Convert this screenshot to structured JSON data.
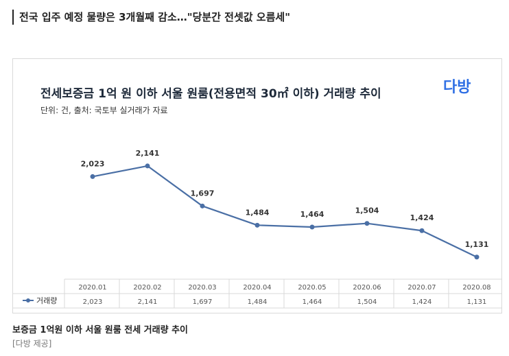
{
  "headline": "전국 입주 예정 물량은 3개월째 감소…\"당분간 전셋값 오름세\"",
  "caption": "보증금 1억원 이하 서울 원룸 전세 거래량 추이",
  "credit": "[다방 제공]",
  "logo_text": "다방",
  "colors": {
    "line": "#4a6fa5",
    "logo": "#2f6fe4",
    "grid": "#d9d9d9"
  },
  "chart_data": {
    "type": "line",
    "title": "전세보증금 1억 원 이하 서울 원룸(전용면적 30㎡ 이하) 거래량 추이",
    "subtitle": "단위: 건, 출처: 국토부 실거래가 자료",
    "categories": [
      "2020.01",
      "2020.02",
      "2020.03",
      "2020.04",
      "2020.05",
      "2020.06",
      "2020.07",
      "2020.08"
    ],
    "series": [
      {
        "name": "거래량",
        "values": [
          2023,
          2141,
          1697,
          1484,
          1464,
          1504,
          1424,
          1131
        ],
        "labels": [
          "2,023",
          "2,141",
          "1,697",
          "1,484",
          "1,464",
          "1,504",
          "1,424",
          "1,131"
        ]
      }
    ],
    "ylim": [
      1000,
      2300
    ],
    "grid": false,
    "legend": "table-left"
  }
}
